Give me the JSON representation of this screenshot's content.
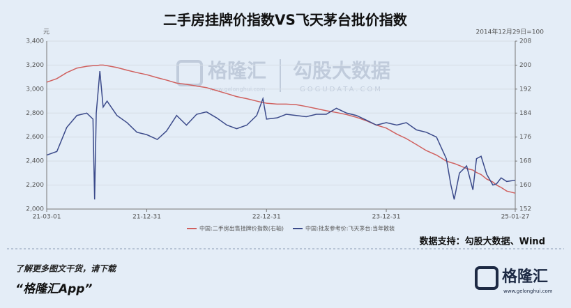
{
  "chart_data": {
    "type": "line",
    "title": "二手房挂牌价指数VS飞天茅台批价指数",
    "y_label": "元",
    "y2_label": "2014年12月29日=100",
    "source": "数据支持：勾股大数据、Wind",
    "watermark": {
      "brand": "格隆汇",
      "brand_url": "www.gelonghui.com",
      "partner": "勾股大数据",
      "partner_url": "GOGUDATA.COM"
    },
    "footer": {
      "prompt": "了解更多图文干货，请下载",
      "app": "“格隆汇App”",
      "logo": "格隆汇",
      "logo_url": "www.gelonghui.com"
    },
    "grid": true,
    "legend": "bottom",
    "xlim": [
      "21-03-01",
      "25-01-27"
    ],
    "xticks": [
      "21-03-01",
      "21-12-31",
      "22-12-31",
      "23-12-31",
      "25-01-27"
    ],
    "ylim": [
      2000,
      3400
    ],
    "yticks": [
      {
        "value": 2000,
        "label": "2,000"
      },
      {
        "value": 2200,
        "label": "2,200"
      },
      {
        "value": 2400,
        "label": "2,400"
      },
      {
        "value": 2600,
        "label": "2,600"
      },
      {
        "value": 2800,
        "label": "2,800"
      },
      {
        "value": 3000,
        "label": "3,000"
      },
      {
        "value": 3200,
        "label": "3,200"
      },
      {
        "value": 3400,
        "label": "3,400"
      }
    ],
    "y2lim": [
      152,
      208
    ],
    "y2ticks": [
      152,
      160,
      168,
      176,
      184,
      192,
      200,
      208
    ],
    "x": [
      "21-03-01",
      "21-04-01",
      "21-05-01",
      "21-06-01",
      "21-07-01",
      "21-07-20",
      "21-07-25",
      "21-07-30",
      "21-08-10",
      "21-08-20",
      "21-09-01",
      "21-10-01",
      "21-11-01",
      "21-12-01",
      "21-12-31",
      "22-02-01",
      "22-03-01",
      "22-04-01",
      "22-05-01",
      "22-06-01",
      "22-07-01",
      "22-08-01",
      "22-09-01",
      "22-10-01",
      "22-11-01",
      "22-12-01",
      "22-12-20",
      "22-12-31",
      "23-02-01",
      "23-03-01",
      "23-04-01",
      "23-05-01",
      "23-06-01",
      "23-07-01",
      "23-08-01",
      "23-09-01",
      "23-10-01",
      "23-11-01",
      "23-12-01",
      "23-12-31",
      "24-02-01",
      "24-03-01",
      "24-04-01",
      "24-05-01",
      "24-06-01",
      "24-07-01",
      "24-07-15",
      "24-07-25",
      "24-08-10",
      "24-09-01",
      "24-09-20",
      "24-10-01",
      "24-10-15",
      "24-11-01",
      "24-11-20",
      "24-12-01",
      "24-12-15",
      "25-01-01",
      "25-01-27"
    ],
    "series": [
      {
        "name": "中国:二手房出售挂牌价指数(右轴)",
        "color": "#d0605e",
        "axis": "y2",
        "values": [
          194.3,
          195.5,
          197.5,
          199,
          199.6,
          199.8,
          199.8,
          199.8,
          200,
          200,
          199.8,
          199.2,
          198.3,
          197.5,
          196.8,
          195.8,
          195,
          194,
          193.6,
          193,
          192.5,
          191.5,
          190.5,
          189.5,
          188.8,
          188,
          187.5,
          187.3,
          187,
          187,
          186.8,
          186.2,
          185.5,
          184.8,
          184.2,
          183.5,
          182.6,
          181.4,
          180,
          179,
          177,
          175.5,
          173.5,
          171.5,
          170,
          168,
          167.5,
          167.2,
          166.5,
          165.5,
          165,
          164.2,
          163.5,
          162,
          161,
          160,
          159.2,
          158,
          157.3
        ]
      },
      {
        "name": "中国:批发参考价:飞天茅台:当年散装",
        "color": "#3b4a8a",
        "values": [
          2450,
          2480,
          2680,
          2780,
          2800,
          2750,
          2080,
          2800,
          3150,
          2850,
          2900,
          2780,
          2720,
          2640,
          2620,
          2580,
          2650,
          2780,
          2700,
          2790,
          2810,
          2760,
          2700,
          2670,
          2700,
          2780,
          2920,
          2750,
          2760,
          2790,
          2780,
          2770,
          2790,
          2790,
          2840,
          2800,
          2780,
          2740,
          2700,
          2720,
          2700,
          2720,
          2660,
          2640,
          2600,
          2420,
          2200,
          2080,
          2300,
          2360,
          2160,
          2420,
          2440,
          2290,
          2200,
          2210,
          2260,
          2230,
          2240
        ]
      }
    ]
  }
}
